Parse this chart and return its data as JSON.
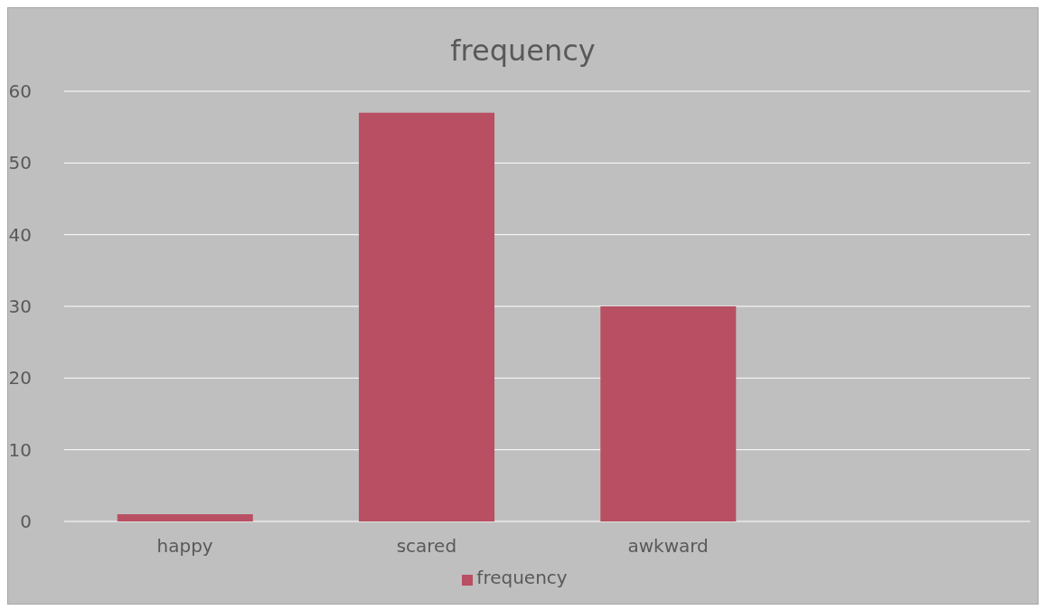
{
  "chart_data": {
    "type": "bar",
    "title": "frequency",
    "categories": [
      "happy",
      "scared",
      "awkward",
      null
    ],
    "series": [
      {
        "name": "frequency",
        "color": "#b94f63",
        "values": [
          1,
          57,
          30,
          null
        ]
      }
    ],
    "ylim": [
      0,
      60
    ],
    "yticks": [
      0,
      10,
      20,
      30,
      40,
      50,
      60
    ],
    "grid": "y",
    "legend": "bottom"
  }
}
